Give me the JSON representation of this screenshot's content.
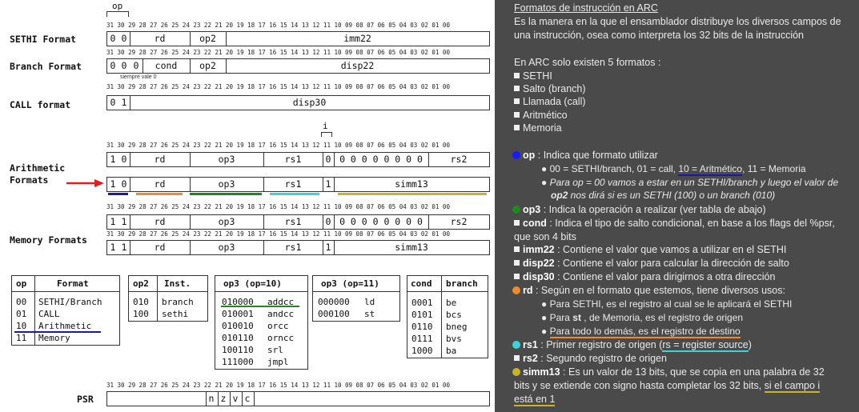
{
  "diagram": {
    "op_label": "op",
    "i_label": "i",
    "bits_full": "31 30 29 28 27 26 25 24 23 22 21 20 19 18 17 16 15 14 13 12 11 10 09 08 07 06 05 04 03 02 01 00",
    "formats": {
      "sethi": {
        "label": "SETHI Format",
        "fields": [
          "0",
          "0",
          "rd",
          "op2",
          "imm22"
        ]
      },
      "branch": {
        "label": "Branch Format",
        "fields": [
          "0",
          "0",
          "0",
          "cond",
          "op2",
          "disp22"
        ],
        "note": "siempre vale 0"
      },
      "call": {
        "label": "CALL format",
        "fields": [
          "0",
          "1",
          "disp30"
        ]
      },
      "arith": {
        "label1": "Arithmetic",
        "label2": "Formats",
        "row1": [
          "1",
          "0",
          "rd",
          "op3",
          "rs1",
          "0",
          "0 0 0 0 0 0 0 0",
          "rs2"
        ],
        "row2": [
          "1",
          "0",
          "rd",
          "op3",
          "rs1",
          "1",
          "simm13"
        ]
      },
      "memory": {
        "label": "Memory Formats",
        "row1": [
          "1",
          "1",
          "rd",
          "op3",
          "rs1",
          "0",
          "0 0 0 0 0 0 0 0",
          "rs2"
        ],
        "row2": [
          "1",
          "1",
          "rd",
          "op3",
          "rs1",
          "1",
          "simm13"
        ]
      }
    },
    "psr": {
      "label": "PSR",
      "flags": [
        "n",
        "z",
        "v",
        "c"
      ]
    },
    "underline_colors": {
      "op": "#1a1aa8",
      "rd": "#f08a2c",
      "op3": "#1e8a1e",
      "rs1": "#3cd4d8",
      "simm13": "#c8b428"
    },
    "arrow_color": "#e02020"
  },
  "tables": {
    "op": {
      "headers": [
        "op",
        "Format"
      ],
      "rows": [
        [
          "00",
          "SETHI/Branch"
        ],
        [
          "01",
          "CALL"
        ],
        [
          "10",
          "Arithmetic"
        ],
        [
          "11",
          "Memory"
        ]
      ]
    },
    "op2": {
      "headers": [
        "op2",
        "Inst."
      ],
      "rows": [
        [
          "010",
          "branch"
        ],
        [
          "100",
          "sethi"
        ]
      ]
    },
    "op3a": {
      "header": "op3 (op=10)",
      "rows": [
        [
          "010000",
          "addcc"
        ],
        [
          "010001",
          "andcc"
        ],
        [
          "010010",
          "orcc"
        ],
        [
          "010110",
          "orncc"
        ],
        [
          "100110",
          "srl"
        ],
        [
          "111000",
          "jmpl"
        ]
      ]
    },
    "op3b": {
      "header": "op3 (op=11)",
      "rows": [
        [
          "000000",
          "ld"
        ],
        [
          "000100",
          "st"
        ]
      ]
    },
    "cond": {
      "headers": [
        "cond",
        "branch"
      ],
      "rows": [
        [
          "0001",
          "be"
        ],
        [
          "0101",
          "bcs"
        ],
        [
          "0110",
          "bneg"
        ],
        [
          "0111",
          "bvs"
        ],
        [
          "1000",
          "ba"
        ]
      ]
    }
  },
  "notes": {
    "title": "Formatos de instrucción en ARC",
    "intro1": "Es la manera en la que el ensamblador distribuye los diversos campos de",
    "intro2": "una instrucción, osea como interpreta los 32 bits de la instrucción",
    "five": "En ARC solo existen 5 formatos :",
    "list": [
      "SETHI",
      "Salto (branch)",
      "Llamada (call)",
      "Aritmético",
      "Memoria"
    ],
    "op_key": "op",
    "op_desc": " : Indica que formato utilizar",
    "op_sub1a": "00 = SETHI/branch, 01 = call, ",
    "op_sub1b": "10 = Aritmético",
    "op_sub1c": ", 11 = Memoria",
    "op_sub2a": "Para op = 00 vamos a estar en un SETHI/branch y luego el valor de",
    "op_sub2b_key": "op2",
    "op_sub2b": " nos dirá si es un SETHI (100) o un branch (010)",
    "op3_key": "op3",
    "op3_desc": " : Indica la operación a realizar (ver tabla de abajo)",
    "cond_key": "cond",
    "cond_desc": " : Indica el tipo de salto condicional, en base a los flags del %psr,",
    "cond_desc2": "que son 4 bits",
    "imm22_key": "imm22",
    "imm22_desc": " : Contiene el valor que vamos a utilizar en el SETHI",
    "disp22_key": "disp22",
    "disp22_desc": " : Contiene el valor para calcular la dirección de salto",
    "disp30_key": "disp30",
    "disp30_desc": " : Contiene el valor para dirigirnos a otra dirección",
    "rd_key": "rd",
    "rd_desc": " : Según en el formato que estemos, tiene diversos usos:",
    "rd_sub1": "Para SETHI, es el registro al cual se le aplicará el SETHI",
    "rd_sub2a": "Para ",
    "rd_sub2b": "st",
    "rd_sub2c": " , de Memoria, es el registro de origen",
    "rd_sub3": "Para todo lo demás, es el registro de destino",
    "rs1_key": "rs1",
    "rs1_desc_a": " : Primer registro de origen (",
    "rs1_desc_b": "rs = register source",
    "rs1_desc_c": ")",
    "rs2_key": "rs2",
    "rs2_desc": " : Segundo registro de origen",
    "simm13_key": "simm13",
    "simm13_desc": " : Es un valor de 13 bits, que se copia en una palabra de 32",
    "simm13_desc2a": "bits y se extiende con signo hasta completar los 32 bits, ",
    "simm13_desc2b": "si el campo  i",
    "simm13_desc3": "está en 1"
  }
}
